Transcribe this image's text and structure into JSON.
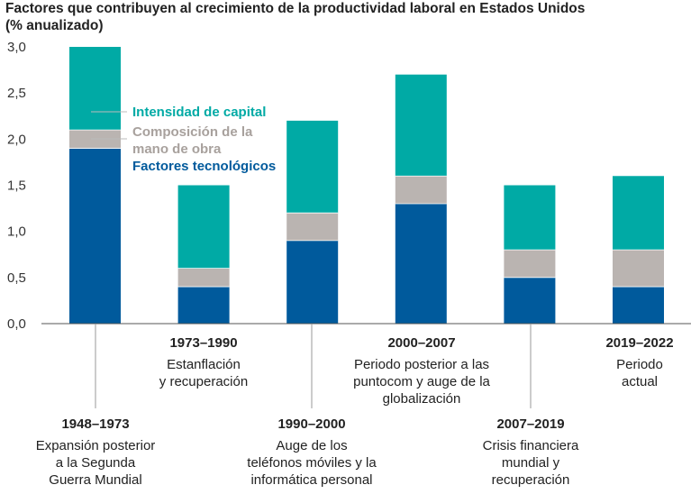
{
  "chart_data": {
    "type": "bar",
    "stacked": true,
    "title_lines": [
      "Factores que contribuyen al crecimiento de la productividad laboral en Estados Unidos",
      "(% anualizado)"
    ],
    "ylim": [
      0,
      3
    ],
    "y_ticks": [
      "0,0",
      "0,5",
      "1,0",
      "1,5",
      "2,0",
      "2,5",
      "3,0"
    ],
    "categories": [
      {
        "years": "1948–1973",
        "desc": [
          "Expansión posterior",
          "a la Segunda",
          "Guerra Mundial"
        ]
      },
      {
        "years": "1973–1990",
        "desc": [
          "Estanflación",
          "y recuperación"
        ]
      },
      {
        "years": "1990–2000",
        "desc": [
          "Auge de los",
          "teléfonos móviles y la",
          "informática personal"
        ]
      },
      {
        "years": "2000–2007",
        "desc": [
          "Periodo posterior a las",
          "puntocom y auge de la",
          "globalización"
        ]
      },
      {
        "years": "2007–2019",
        "desc": [
          "Crisis financiera",
          "mundial y",
          "recuperación"
        ]
      },
      {
        "years": "2019–2022",
        "desc": [
          "Periodo",
          "actual"
        ]
      }
    ],
    "series": [
      {
        "name": "Factores tecnológicos",
        "color": "#005a9c",
        "values": [
          1.9,
          0.4,
          0.9,
          1.3,
          0.5,
          0.4
        ]
      },
      {
        "name": "Composición de la mano de obra",
        "legend_lines": [
          "Composición de la",
          "mano de obra"
        ],
        "color": "#bab4b1",
        "values": [
          0.2,
          0.2,
          0.3,
          0.3,
          0.3,
          0.4
        ]
      },
      {
        "name": "Intensidad de capital",
        "color": "#00aaa5",
        "values": [
          0.9,
          0.9,
          1.0,
          1.1,
          0.7,
          0.8
        ]
      }
    ]
  }
}
